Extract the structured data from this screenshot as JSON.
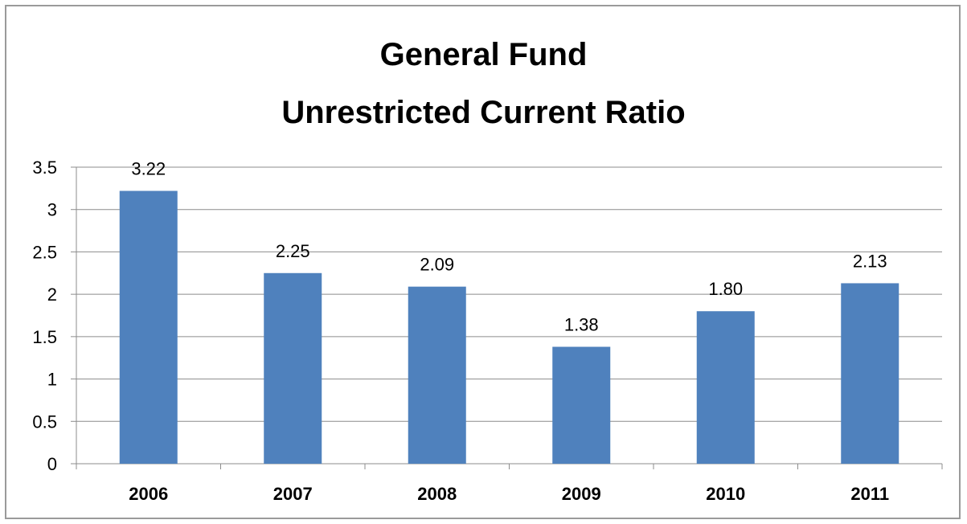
{
  "chart_data": {
    "type": "bar",
    "title": [
      "General Fund",
      "Unrestricted Current Ratio"
    ],
    "categories": [
      "2006",
      "2007",
      "2008",
      "2009",
      "2010",
      "2011"
    ],
    "values": [
      3.22,
      2.25,
      2.09,
      1.38,
      1.8,
      2.13
    ],
    "value_labels": [
      "3.22",
      "2.25",
      "2.09",
      "1.38",
      "1.80",
      "2.13"
    ],
    "yticks": [
      "0",
      "0.5",
      "1",
      "1.5",
      "2",
      "2.5",
      "3",
      "3.5"
    ],
    "ylim": [
      0,
      3.5
    ],
    "grid": true,
    "legend": "none",
    "colors": {
      "bar": "#4F81BD",
      "grid": "#8c8c8c",
      "axis": "#8c8c8c"
    }
  }
}
